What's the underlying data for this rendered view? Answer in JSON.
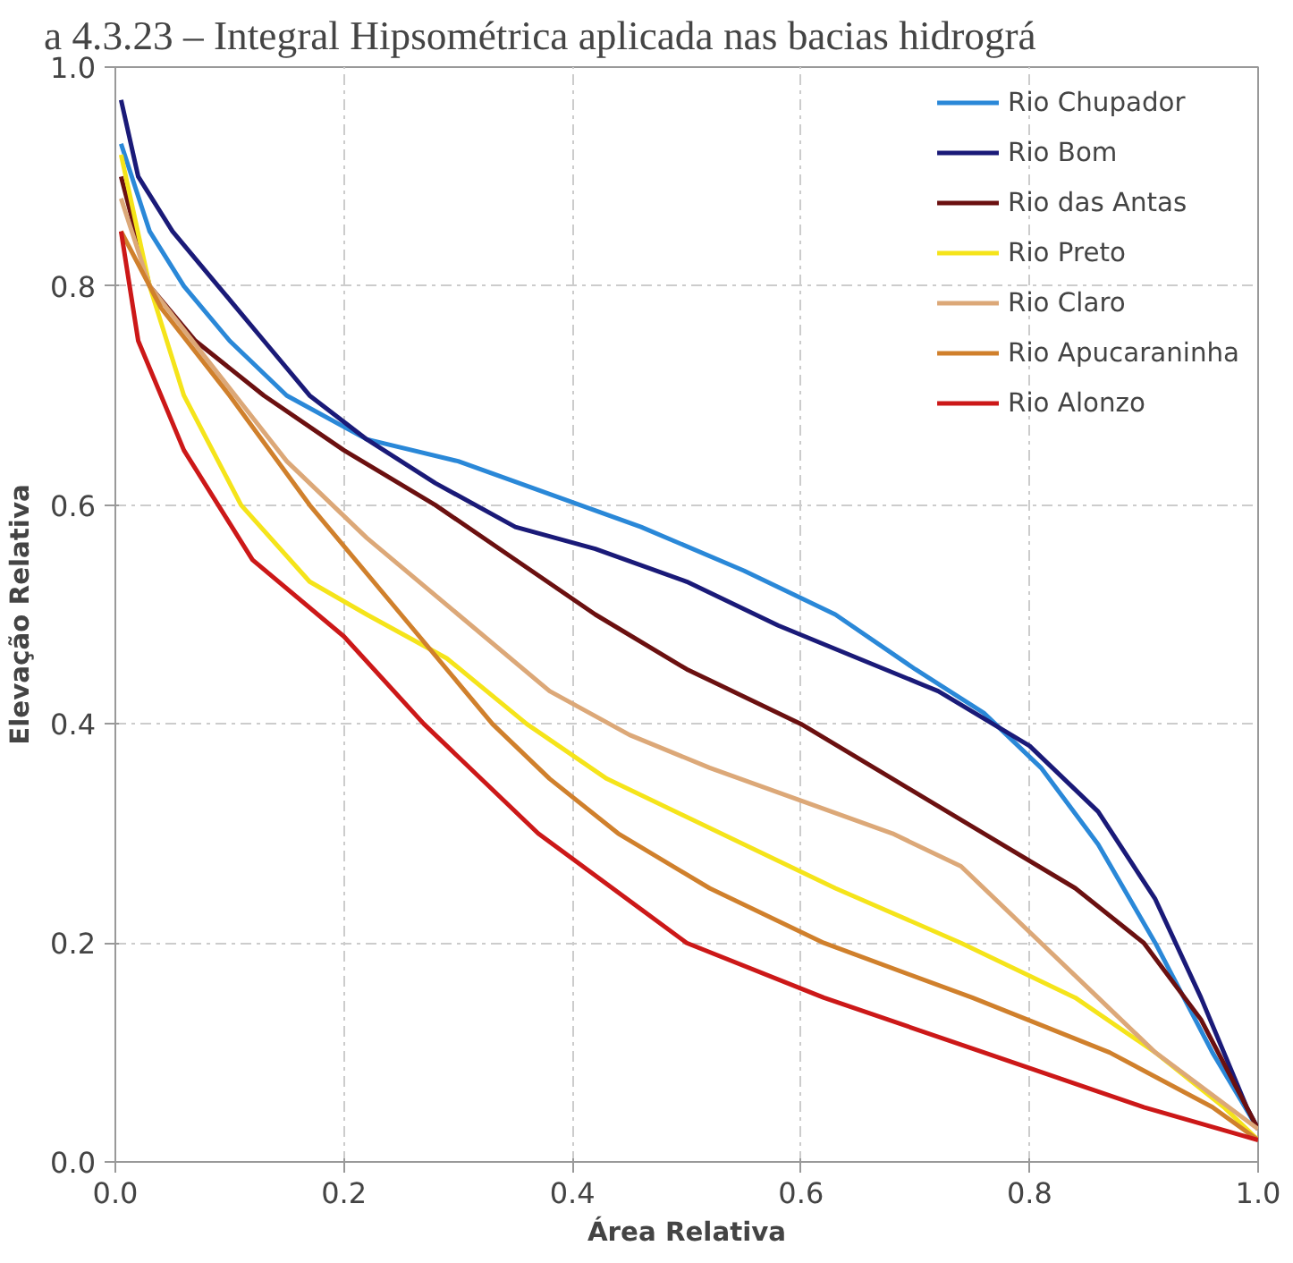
{
  "chart_data": {
    "type": "line",
    "title": "a 4.3.23 – Integral Hipsométrica aplicada nas bacias hidrográ",
    "xlabel": "Área Relativa",
    "ylabel": "Elevação Relativa",
    "xlim": [
      0,
      1
    ],
    "ylim": [
      0,
      1
    ],
    "xticks": [
      {
        "value": 0,
        "label": "0.0"
      },
      0.2,
      0.4,
      0.6,
      0.8,
      {
        "value": 1,
        "label": "1.0"
      }
    ],
    "yticks": [
      {
        "value": 0,
        "label": "0.0"
      },
      0.2,
      0.4,
      0.6,
      0.8,
      {
        "value": 1,
        "label": "1.0"
      }
    ],
    "grid": true,
    "legend": "top right",
    "line_style": "solid",
    "marker": "none",
    "series": [
      {
        "name": "Rio Chupador",
        "color": "#2a88d8",
        "x": [
          0.005,
          0.03,
          0.06,
          0.1,
          0.15,
          0.22,
          0.3,
          0.38,
          0.46,
          0.55,
          0.63,
          0.7,
          0.76,
          0.81,
          0.86,
          0.91,
          0.96,
          1.0
        ],
        "values": [
          0.93,
          0.85,
          0.8,
          0.75,
          0.7,
          0.66,
          0.64,
          0.61,
          0.58,
          0.54,
          0.5,
          0.45,
          0.41,
          0.36,
          0.29,
          0.2,
          0.1,
          0.03
        ]
      },
      {
        "name": "Rio Bom",
        "color": "#1a1a78",
        "x": [
          0.005,
          0.02,
          0.05,
          0.09,
          0.13,
          0.17,
          0.22,
          0.28,
          0.35,
          0.42,
          0.5,
          0.58,
          0.65,
          0.72,
          0.8,
          0.86,
          0.91,
          0.95,
          0.99,
          1.0
        ],
        "values": [
          0.97,
          0.9,
          0.85,
          0.8,
          0.75,
          0.7,
          0.66,
          0.62,
          0.58,
          0.56,
          0.53,
          0.49,
          0.46,
          0.43,
          0.38,
          0.32,
          0.24,
          0.15,
          0.05,
          0.03
        ]
      },
      {
        "name": "Rio das Antas",
        "color": "#6b1010",
        "x": [
          0.005,
          0.03,
          0.07,
          0.13,
          0.2,
          0.28,
          0.35,
          0.42,
          0.5,
          0.6,
          0.68,
          0.76,
          0.84,
          0.9,
          0.95,
          1.0
        ],
        "values": [
          0.9,
          0.8,
          0.75,
          0.7,
          0.65,
          0.6,
          0.55,
          0.5,
          0.45,
          0.4,
          0.35,
          0.3,
          0.25,
          0.2,
          0.13,
          0.03
        ]
      },
      {
        "name": "Rio Preto",
        "color": "#f5e41a",
        "x": [
          0.005,
          0.03,
          0.06,
          0.11,
          0.17,
          0.22,
          0.29,
          0.36,
          0.43,
          0.53,
          0.63,
          0.74,
          0.84,
          0.91,
          0.97,
          1.0
        ],
        "values": [
          0.92,
          0.8,
          0.7,
          0.6,
          0.53,
          0.5,
          0.46,
          0.4,
          0.35,
          0.3,
          0.25,
          0.2,
          0.15,
          0.1,
          0.05,
          0.02
        ]
      },
      {
        "name": "Rio Claro",
        "color": "#dca878",
        "x": [
          0.005,
          0.03,
          0.09,
          0.15,
          0.22,
          0.3,
          0.38,
          0.45,
          0.52,
          0.6,
          0.68,
          0.74,
          0.79,
          0.86,
          0.91,
          1.0
        ],
        "values": [
          0.88,
          0.8,
          0.72,
          0.64,
          0.57,
          0.5,
          0.43,
          0.39,
          0.36,
          0.33,
          0.3,
          0.27,
          0.22,
          0.15,
          0.1,
          0.03
        ]
      },
      {
        "name": "Rio Apucaraninha",
        "color": "#d0802c",
        "x": [
          0.005,
          0.04,
          0.1,
          0.17,
          0.25,
          0.33,
          0.38,
          0.44,
          0.52,
          0.62,
          0.75,
          0.87,
          0.96,
          1.0
        ],
        "values": [
          0.85,
          0.78,
          0.7,
          0.6,
          0.5,
          0.4,
          0.35,
          0.3,
          0.25,
          0.2,
          0.15,
          0.1,
          0.05,
          0.02
        ]
      },
      {
        "name": "Rio Alonzo",
        "color": "#cc1818",
        "x": [
          0.005,
          0.02,
          0.06,
          0.12,
          0.2,
          0.27,
          0.37,
          0.5,
          0.62,
          0.76,
          0.9,
          1.0
        ],
        "values": [
          0.85,
          0.75,
          0.65,
          0.55,
          0.48,
          0.4,
          0.3,
          0.2,
          0.15,
          0.1,
          0.05,
          0.02
        ]
      }
    ]
  }
}
